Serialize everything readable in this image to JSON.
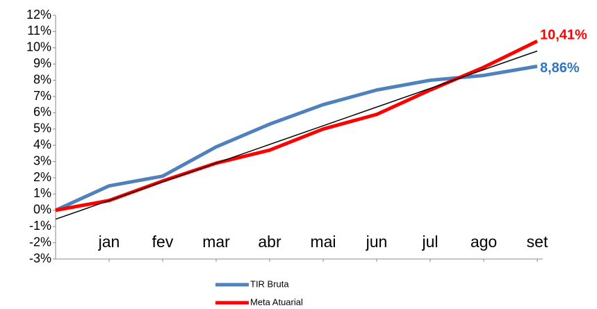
{
  "chart_data": {
    "type": "line",
    "categories": [
      null,
      "jan",
      "fev",
      "mar",
      "abr",
      "mai",
      "jun",
      "jul",
      "ago",
      "set"
    ],
    "series": [
      {
        "name": "TIR Bruta",
        "color": "#4f81bd",
        "values": [
          0,
          1.5,
          2.1,
          3.9,
          5.3,
          6.5,
          7.4,
          8.0,
          8.3,
          8.86
        ],
        "value_labels": [
          null,
          null,
          null,
          null,
          null,
          null,
          null,
          null,
          null,
          "8,86%"
        ],
        "label_color": "#2e75c6"
      },
      {
        "name": "Meta Atuarial",
        "color": "#ff0000",
        "values": [
          0,
          0.6,
          1.8,
          2.9,
          3.7,
          5.0,
          5.9,
          7.4,
          8.8,
          10.41
        ],
        "value_labels": [
          null,
          null,
          null,
          null,
          null,
          null,
          null,
          null,
          null,
          "10,41%"
        ],
        "label_color": "#ff0000"
      }
    ],
    "trendline": {
      "color": "#000000",
      "values": [
        -0.55,
        9.8
      ]
    },
    "ylim": [
      -3,
      12
    ],
    "yticks": [
      {
        "value": -3,
        "label": "-3%"
      },
      {
        "value": -2,
        "label": "-2%"
      },
      {
        "value": -1,
        "label": "-1%"
      },
      {
        "value": 0,
        "label": "0%"
      },
      {
        "value": 1,
        "label": "1%"
      },
      {
        "value": 2,
        "label": "2%"
      },
      {
        "value": 3,
        "label": "3%"
      },
      {
        "value": 4,
        "label": "4%"
      },
      {
        "value": 5,
        "label": "5%"
      },
      {
        "value": 6,
        "label": "6%"
      },
      {
        "value": 7,
        "label": "7%"
      },
      {
        "value": 8,
        "label": "8%"
      },
      {
        "value": 9,
        "label": "9%"
      },
      {
        "value": 10,
        "label": "10%"
      },
      {
        "value": 11,
        "label": "11%"
      },
      {
        "value": 12,
        "label": "12%"
      }
    ],
    "legend": "bottom"
  }
}
